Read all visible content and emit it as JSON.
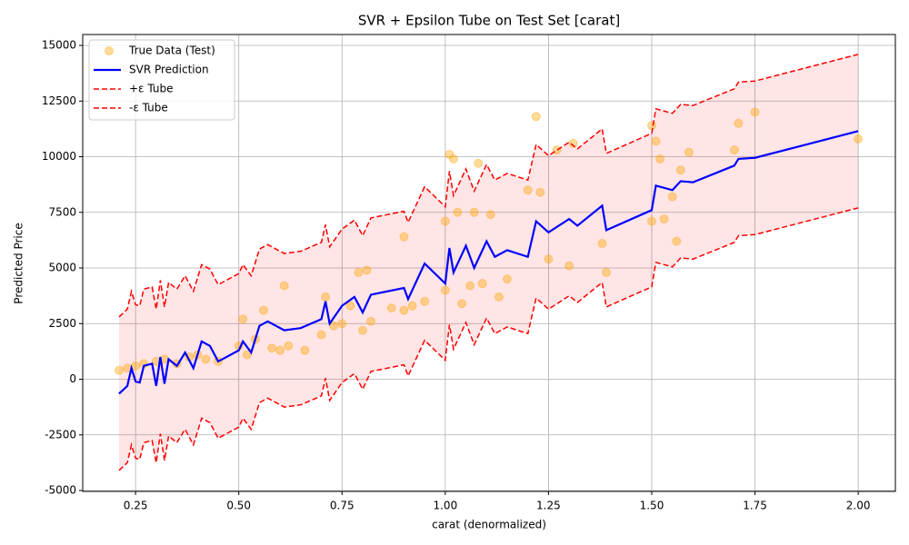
{
  "chart_data": {
    "type": "line",
    "title": "SVR + Epsilon Tube on Test Set [carat]",
    "x_label": "carat (denormalized)",
    "y_label": "Predicted Price",
    "xlim": [
      0.122,
      2.09
    ],
    "ylim": [
      -5040,
      15490
    ],
    "xticks": [
      0.25,
      {
        "value": 0.5,
        "label": "0.50"
      },
      0.75,
      {
        "value": 1,
        "label": "1.00"
      },
      1.25,
      {
        "value": 1.5,
        "label": "1.50"
      },
      1.75,
      {
        "value": 2,
        "label": "2.00"
      }
    ],
    "yticks": [
      -5000,
      -2500,
      0,
      2500,
      5000,
      7500,
      10000,
      12500,
      15000
    ],
    "grid": true,
    "legend": "upper left",
    "fill_between": {
      "color": "#ff0000",
      "alpha": 0.1
    },
    "x": [
      0.21,
      0.23,
      0.24,
      0.25,
      0.26,
      0.27,
      0.29,
      0.3,
      0.31,
      0.32,
      0.33,
      0.35,
      0.37,
      0.39,
      0.41,
      0.43,
      0.45,
      0.5,
      0.51,
      0.53,
      0.55,
      0.57,
      0.61,
      0.65,
      0.7,
      0.71,
      0.72,
      0.75,
      0.78,
      0.8,
      0.82,
      0.9,
      0.91,
      0.95,
      1.0,
      1.01,
      1.02,
      1.05,
      1.07,
      1.1,
      1.12,
      1.15,
      1.2,
      1.22,
      1.25,
      1.3,
      1.32,
      1.38,
      1.39,
      1.5,
      1.51,
      1.55,
      1.57,
      1.6,
      1.7,
      1.71,
      1.75,
      2.0
    ],
    "series": [
      {
        "name": "True Data (Test)",
        "kind": "scatter",
        "color": "#ffa500",
        "alpha": 0.4,
        "x": [
          0.21,
          0.23,
          0.25,
          0.27,
          0.3,
          0.32,
          0.35,
          0.38,
          0.4,
          0.42,
          0.45,
          0.5,
          0.51,
          0.52,
          0.54,
          0.56,
          0.58,
          0.6,
          0.61,
          0.62,
          0.66,
          0.7,
          0.71,
          0.73,
          0.75,
          0.77,
          0.79,
          0.8,
          0.81,
          0.82,
          0.87,
          0.9,
          0.9,
          0.92,
          0.95,
          1.0,
          1.0,
          1.01,
          1.02,
          1.03,
          1.04,
          1.06,
          1.07,
          1.08,
          1.09,
          1.11,
          1.13,
          1.15,
          1.2,
          1.22,
          1.23,
          1.25,
          1.27,
          1.3,
          1.31,
          1.38,
          1.39,
          1.5,
          1.5,
          1.51,
          1.52,
          1.53,
          1.55,
          1.56,
          1.57,
          1.59,
          1.7,
          1.71,
          1.75,
          2.0
        ],
        "values": [
          400,
          500,
          600,
          700,
          800,
          900,
          700,
          1000,
          1100,
          900,
          800,
          1500,
          2700,
          1100,
          1800,
          3100,
          1400,
          1300,
          4200,
          1500,
          1300,
          2000,
          3700,
          2400,
          2500,
          3300,
          4800,
          2200,
          4900,
          2600,
          3200,
          3100,
          6400,
          3300,
          3500,
          4000,
          7100,
          10100,
          9900,
          7500,
          3400,
          4200,
          7500,
          9700,
          4300,
          7400,
          3700,
          4500,
          8500,
          11800,
          8400,
          5400,
          10300,
          5100,
          10600,
          6100,
          4800,
          7100,
          11400,
          10700,
          9900,
          7200,
          8200,
          6200,
          9400,
          10200,
          10300,
          11500,
          12000,
          10800
        ]
      },
      {
        "name": "SVR Prediction",
        "kind": "line",
        "color": "#0000ff",
        "values": [
          -650,
          -300,
          500,
          -100,
          -150,
          600,
          700,
          -300,
          1000,
          -200,
          900,
          600,
          1200,
          500,
          1700,
          1500,
          800,
          1300,
          1700,
          1200,
          2400,
          2600,
          2200,
          2300,
          2700,
          3500,
          2500,
          3300,
          3700,
          3000,
          3800,
          4100,
          3600,
          5200,
          4300,
          5900,
          4800,
          6000,
          5000,
          6200,
          5500,
          5800,
          5500,
          7100,
          6600,
          7200,
          6900,
          7800,
          6700,
          7600,
          8700,
          8500,
          8900,
          8850,
          9600,
          9900,
          9950,
          11150
        ]
      },
      {
        "name": "+ε Tube",
        "kind": "dashed",
        "color": "#ff0000",
        "values": [
          2800,
          3150,
          3950,
          3350,
          3300,
          4050,
          4150,
          3150,
          4450,
          3250,
          4350,
          4050,
          4650,
          3950,
          5150,
          4950,
          4250,
          4750,
          5150,
          4650,
          5850,
          6050,
          5650,
          5750,
          6150,
          6950,
          5950,
          6750,
          7150,
          6450,
          7250,
          7550,
          7050,
          8650,
          7750,
          9350,
          8250,
          9450,
          8450,
          9650,
          8950,
          9250,
          8950,
          10550,
          10050,
          10650,
          10350,
          11250,
          10150,
          11050,
          12150,
          11950,
          12350,
          12300,
          13050,
          13350,
          13400,
          14600
        ]
      },
      {
        "name": "-ε Tube",
        "kind": "dashed",
        "color": "#ff0000",
        "values": [
          -4100,
          -3750,
          -2950,
          -3550,
          -3600,
          -2850,
          -2750,
          -3750,
          -2450,
          -3650,
          -2550,
          -2850,
          -2250,
          -2950,
          -1750,
          -1950,
          -2650,
          -2150,
          -1750,
          -2250,
          -1050,
          -850,
          -1250,
          -1150,
          -750,
          50,
          -950,
          -150,
          250,
          -450,
          350,
          650,
          150,
          1750,
          850,
          2450,
          1350,
          2550,
          1550,
          2750,
          2050,
          2350,
          2050,
          3650,
          3150,
          3750,
          3450,
          4350,
          3250,
          4150,
          5250,
          5050,
          5450,
          5400,
          6150,
          6450,
          6500,
          7700
        ]
      }
    ]
  }
}
